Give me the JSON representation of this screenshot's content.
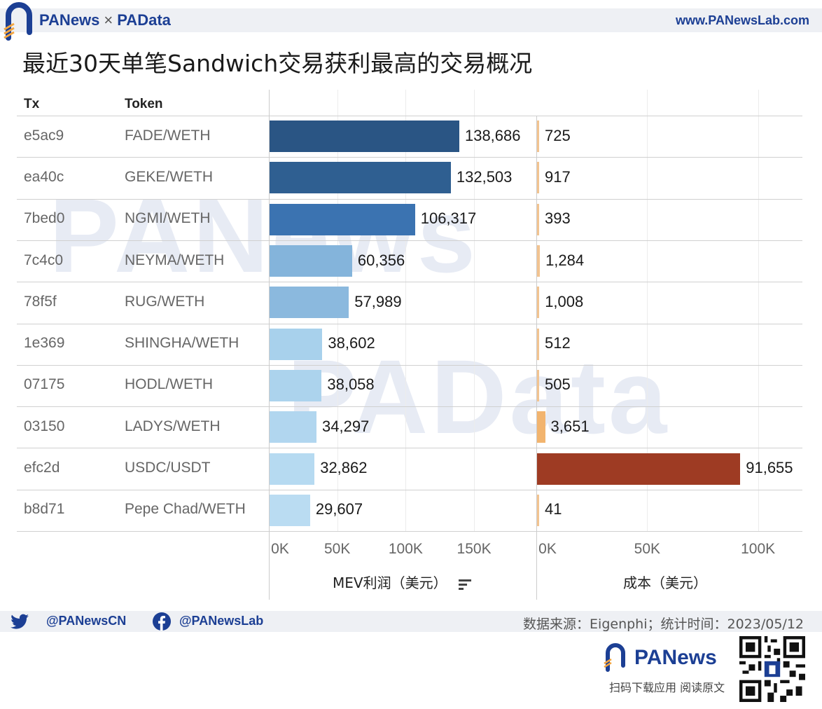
{
  "header": {
    "brand_left": "PANews",
    "brand_sep": "×",
    "brand_right": "PAData",
    "url": "www.PANewsLab.com"
  },
  "title": "最近30天单笔Sandwich交易获利最高的交易概况",
  "watermarks": {
    "top": "PANews",
    "middle": "PAData"
  },
  "chart_data": {
    "type": "bar",
    "orientation": "horizontal",
    "columns": {
      "tx": "Tx",
      "token": "Token"
    },
    "categories": [
      "e5ac9",
      "ea40c",
      "7bed0",
      "7c4c0",
      "78f5f",
      "1e369",
      "07175",
      "03150",
      "efc2d",
      "b8d71"
    ],
    "tokens": [
      "FADE/WETH",
      "GEKE/WETH",
      "NGMI/WETH",
      "NEYMA/WETH",
      "RUG/WETH",
      "SHINGHA/WETH",
      "HODL/WETH",
      "LADYS/WETH",
      "USDC/USDT",
      "Pepe Chad/WETH"
    ],
    "series": [
      {
        "name": "MEV利润（美元）",
        "values": [
          138686,
          132503,
          106317,
          60356,
          57989,
          38602,
          38058,
          34297,
          32862,
          29607
        ],
        "labels": [
          "138,686",
          "132,503",
          "106,317",
          "60,356",
          "57,989",
          "38,602",
          "38,058",
          "34,297",
          "32,862",
          "29,607"
        ],
        "xlim": [
          0,
          195000
        ],
        "ticks": [
          0,
          50000,
          100000,
          150000
        ],
        "tick_labels": [
          "0K",
          "50K",
          "100K",
          "150K"
        ],
        "colors": [
          "#2a5584",
          "#2f5f91",
          "#3b73b1",
          "#84b4db",
          "#8bb9de",
          "#a8d1ec",
          "#acd3ed",
          "#b1d6ef",
          "#b6daf1",
          "#badcf2"
        ]
      },
      {
        "name": "成本（美元）",
        "values": [
          725,
          917,
          393,
          1284,
          1008,
          512,
          505,
          3651,
          91655,
          41
        ],
        "labels": [
          "725",
          "917",
          "393",
          "1,284",
          "1,008",
          "512",
          "505",
          "3,651",
          "91,655",
          "41"
        ],
        "xlim": [
          0,
          120000
        ],
        "ticks": [
          0,
          50000,
          100000
        ],
        "tick_labels": [
          "0K",
          "50K",
          "100K"
        ],
        "colors": [
          "#f2c491",
          "#f2c491",
          "#f2c491",
          "#f2c491",
          "#f2c491",
          "#f2c491",
          "#f2c491",
          "#f2b46e",
          "#9e3b23",
          "#f2c491"
        ]
      }
    ],
    "grid": true
  },
  "footer": {
    "twitter": "@PANewsCN",
    "facebook": "@PANewsLab",
    "source": "数据来源：Eigenphi；统计时间：2023/05/12",
    "brand": "PANews",
    "scan": "扫码下载应用  阅读原文"
  }
}
